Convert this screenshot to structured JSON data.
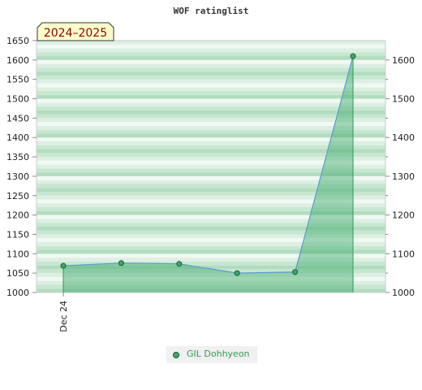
{
  "chart_data": {
    "type": "area",
    "title": "WOF ratinglist",
    "season_label": "2024–2025",
    "x_tick_labels": [
      "Dec 24"
    ],
    "ylim": [
      1000,
      1650
    ],
    "left_ticks": [
      1000,
      1050,
      1100,
      1150,
      1200,
      1250,
      1300,
      1350,
      1400,
      1450,
      1500,
      1550,
      1600,
      1650
    ],
    "right_ticks": [
      1000,
      1100,
      1200,
      1300,
      1400,
      1500,
      1600
    ],
    "grid": true,
    "legend_position": "bottom",
    "series": [
      {
        "name": "GIL Dohhyeon",
        "values": [
          1069,
          1076,
          1074,
          1050,
          1053,
          1610
        ],
        "color": "#3ca86a",
        "line_color": "#5b9bd5"
      }
    ]
  }
}
